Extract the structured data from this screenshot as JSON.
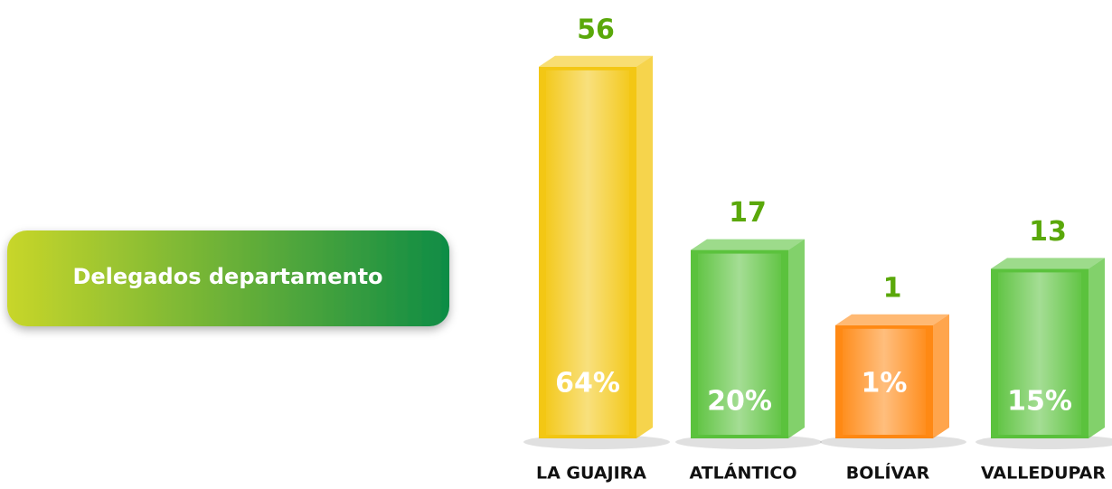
{
  "chart_data": {
    "type": "bar",
    "title": "Delegados departamento",
    "categories": [
      "LA GUAJIRA",
      "ATLÁNTICO",
      "BOLÍVAR",
      "VALLEDUPAR"
    ],
    "values": [
      56,
      17,
      1,
      13
    ],
    "shares": [
      64,
      20,
      1,
      15
    ],
    "share_labels": [
      "64%",
      "20%",
      "1%",
      "15%"
    ],
    "colors": [
      "#f2c200",
      "#4dbd2c",
      "#ff7f00",
      "#4dbd2c"
    ],
    "value_label_color": "#5aa80a"
  }
}
